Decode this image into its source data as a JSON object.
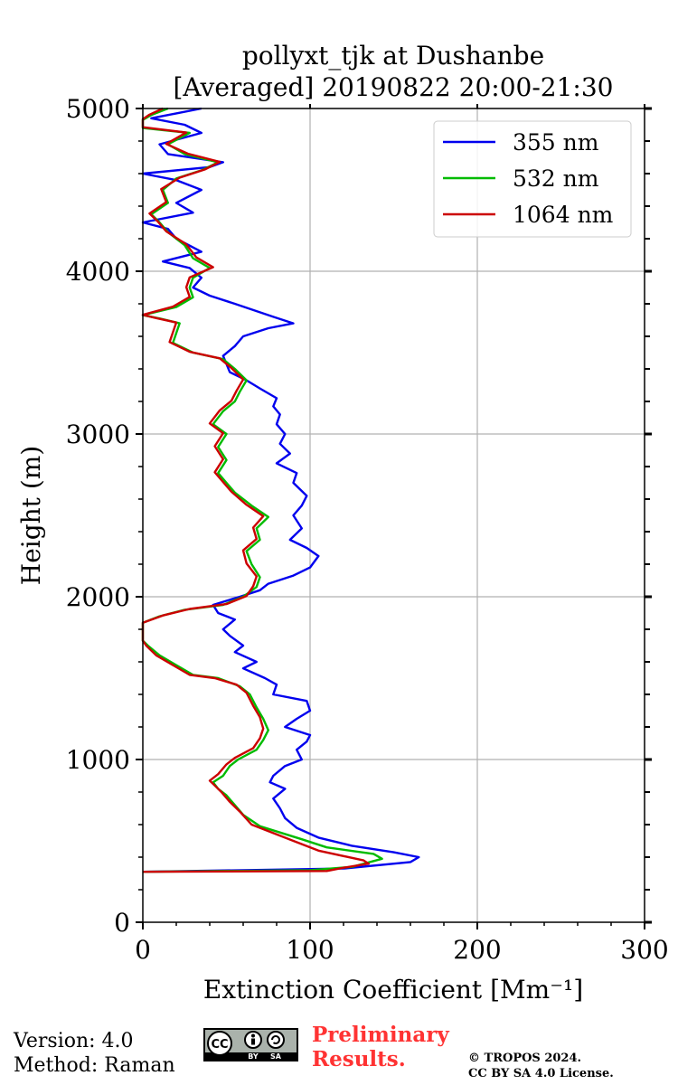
{
  "chart_data": {
    "type": "line",
    "title": "pollyxt_tjk at Dushanbe",
    "subtitle": "[Averaged] 20190822 20:00-21:30",
    "xlabel": "Extinction Coefficient [Mm⁻¹]",
    "ylabel": "Height (m)",
    "xlim": [
      0,
      300
    ],
    "ylim": [
      0,
      5000
    ],
    "xticks": [
      0,
      100,
      200,
      300
    ],
    "yticks": [
      0,
      1000,
      2000,
      3000,
      4000,
      5000
    ],
    "grid": true,
    "legend_position": "top-right",
    "series": [
      {
        "name": "355 nm",
        "color": "#0000ee",
        "points": [
          [
            0,
            310
          ],
          [
            120,
            330
          ],
          [
            160,
            370
          ],
          [
            165,
            400
          ],
          [
            150,
            430
          ],
          [
            125,
            470
          ],
          [
            105,
            520
          ],
          [
            92,
            580
          ],
          [
            85,
            640
          ],
          [
            82,
            700
          ],
          [
            78,
            760
          ],
          [
            85,
            820
          ],
          [
            76,
            860
          ],
          [
            78,
            900
          ],
          [
            85,
            960
          ],
          [
            95,
            1000
          ],
          [
            92,
            1060
          ],
          [
            98,
            1110
          ],
          [
            100,
            1150
          ],
          [
            85,
            1200
          ],
          [
            92,
            1250
          ],
          [
            100,
            1300
          ],
          [
            98,
            1360
          ],
          [
            78,
            1400
          ],
          [
            80,
            1460
          ],
          [
            73,
            1500
          ],
          [
            60,
            1560
          ],
          [
            68,
            1600
          ],
          [
            55,
            1660
          ],
          [
            60,
            1700
          ],
          [
            52,
            1760
          ],
          [
            48,
            1800
          ],
          [
            55,
            1860
          ],
          [
            45,
            1900
          ],
          [
            42,
            1950
          ],
          [
            58,
            2000
          ],
          [
            70,
            2040
          ],
          [
            75,
            2080
          ],
          [
            90,
            2130
          ],
          [
            100,
            2180
          ],
          [
            105,
            2250
          ],
          [
            98,
            2300
          ],
          [
            88,
            2350
          ],
          [
            95,
            2420
          ],
          [
            90,
            2500
          ],
          [
            95,
            2560
          ],
          [
            98,
            2620
          ],
          [
            90,
            2700
          ],
          [
            92,
            2760
          ],
          [
            80,
            2820
          ],
          [
            88,
            2880
          ],
          [
            82,
            2940
          ],
          [
            85,
            3000
          ],
          [
            80,
            3060
          ],
          [
            82,
            3120
          ],
          [
            78,
            3170
          ],
          [
            80,
            3220
          ],
          [
            70,
            3280
          ],
          [
            62,
            3330
          ],
          [
            52,
            3380
          ],
          [
            50,
            3430
          ],
          [
            48,
            3480
          ],
          [
            55,
            3540
          ],
          [
            60,
            3600
          ],
          [
            75,
            3650
          ],
          [
            90,
            3680
          ],
          [
            78,
            3720
          ],
          [
            55,
            3800
          ],
          [
            40,
            3850
          ],
          [
            30,
            3900
          ],
          [
            35,
            3960
          ],
          [
            28,
            4020
          ],
          [
            12,
            4060
          ],
          [
            35,
            4120
          ],
          [
            20,
            4200
          ],
          [
            15,
            4260
          ],
          [
            0,
            4300
          ],
          [
            30,
            4360
          ],
          [
            20,
            4420
          ],
          [
            35,
            4500
          ],
          [
            20,
            4560
          ],
          [
            0,
            4600
          ],
          [
            40,
            4640
          ],
          [
            48,
            4670
          ],
          [
            15,
            4720
          ],
          [
            10,
            4780
          ],
          [
            35,
            4850
          ],
          [
            25,
            4900
          ],
          [
            5,
            4940
          ],
          [
            20,
            4970
          ],
          [
            35,
            5000
          ]
        ]
      },
      {
        "name": "532 nm",
        "color": "#00bb00",
        "points": [
          [
            0,
            310
          ],
          [
            100,
            320
          ],
          [
            125,
            340
          ],
          [
            143,
            390
          ],
          [
            138,
            420
          ],
          [
            110,
            460
          ],
          [
            95,
            510
          ],
          [
            70,
            590
          ],
          [
            60,
            660
          ],
          [
            55,
            720
          ],
          [
            50,
            780
          ],
          [
            45,
            820
          ],
          [
            42,
            860
          ],
          [
            48,
            900
          ],
          [
            52,
            960
          ],
          [
            57,
            1000
          ],
          [
            68,
            1060
          ],
          [
            72,
            1120
          ],
          [
            75,
            1180
          ],
          [
            72,
            1250
          ],
          [
            68,
            1320
          ],
          [
            64,
            1400
          ],
          [
            58,
            1450
          ],
          [
            45,
            1500
          ],
          [
            30,
            1520
          ],
          [
            20,
            1580
          ],
          [
            10,
            1640
          ],
          [
            3,
            1700
          ],
          [
            0,
            1730
          ],
          [
            0,
            1840
          ],
          [
            10,
            1880
          ],
          [
            25,
            1920
          ],
          [
            48,
            1950
          ],
          [
            60,
            2000
          ],
          [
            68,
            2060
          ],
          [
            70,
            2120
          ],
          [
            65,
            2200
          ],
          [
            62,
            2280
          ],
          [
            70,
            2350
          ],
          [
            68,
            2420
          ],
          [
            75,
            2490
          ],
          [
            65,
            2560
          ],
          [
            55,
            2640
          ],
          [
            50,
            2700
          ],
          [
            45,
            2760
          ],
          [
            50,
            2840
          ],
          [
            45,
            2920
          ],
          [
            50,
            3000
          ],
          [
            42,
            3060
          ],
          [
            48,
            3140
          ],
          [
            55,
            3200
          ],
          [
            58,
            3260
          ],
          [
            62,
            3330
          ],
          [
            55,
            3400
          ],
          [
            48,
            3460
          ],
          [
            30,
            3500
          ],
          [
            18,
            3560
          ],
          [
            20,
            3620
          ],
          [
            22,
            3680
          ],
          [
            10,
            3710
          ],
          [
            0,
            3730
          ],
          [
            20,
            3780
          ],
          [
            30,
            3840
          ],
          [
            28,
            3900
          ],
          [
            30,
            3960
          ],
          [
            40,
            4020
          ],
          [
            30,
            4080
          ],
          [
            25,
            4160
          ],
          [
            15,
            4240
          ],
          [
            10,
            4300
          ],
          [
            5,
            4350
          ],
          [
            15,
            4420
          ],
          [
            12,
            4500
          ],
          [
            20,
            4570
          ],
          [
            35,
            4620
          ],
          [
            45,
            4670
          ],
          [
            25,
            4720
          ],
          [
            15,
            4780
          ],
          [
            28,
            4850
          ],
          [
            0,
            4880
          ],
          [
            0,
            4930
          ],
          [
            5,
            4960
          ],
          [
            15,
            5000
          ]
        ]
      },
      {
        "name": "1064 nm",
        "color": "#cc0000",
        "points": [
          [
            0,
            310
          ],
          [
            110,
            315
          ],
          [
            120,
            335
          ],
          [
            135,
            360
          ],
          [
            132,
            380
          ],
          [
            105,
            440
          ],
          [
            90,
            500
          ],
          [
            65,
            600
          ],
          [
            58,
            680
          ],
          [
            52,
            740
          ],
          [
            47,
            800
          ],
          [
            43,
            840
          ],
          [
            40,
            870
          ],
          [
            45,
            910
          ],
          [
            50,
            970
          ],
          [
            55,
            1010
          ],
          [
            66,
            1070
          ],
          [
            70,
            1130
          ],
          [
            72,
            1190
          ],
          [
            70,
            1260
          ],
          [
            66,
            1330
          ],
          [
            62,
            1410
          ],
          [
            56,
            1460
          ],
          [
            43,
            1500
          ],
          [
            28,
            1520
          ],
          [
            18,
            1580
          ],
          [
            8,
            1640
          ],
          [
            2,
            1700
          ],
          [
            0,
            1730
          ],
          [
            0,
            1840
          ],
          [
            12,
            1885
          ],
          [
            28,
            1925
          ],
          [
            50,
            1955
          ],
          [
            62,
            2005
          ],
          [
            66,
            2065
          ],
          [
            68,
            2125
          ],
          [
            62,
            2205
          ],
          [
            60,
            2285
          ],
          [
            68,
            2355
          ],
          [
            66,
            2425
          ],
          [
            72,
            2495
          ],
          [
            62,
            2565
          ],
          [
            53,
            2645
          ],
          [
            48,
            2705
          ],
          [
            43,
            2765
          ],
          [
            48,
            2845
          ],
          [
            43,
            2925
          ],
          [
            48,
            3005
          ],
          [
            40,
            3065
          ],
          [
            46,
            3145
          ],
          [
            53,
            3205
          ],
          [
            56,
            3265
          ],
          [
            60,
            3335
          ],
          [
            53,
            3405
          ],
          [
            46,
            3465
          ],
          [
            28,
            3505
          ],
          [
            16,
            3565
          ],
          [
            18,
            3625
          ],
          [
            20,
            3685
          ],
          [
            8,
            3712
          ],
          [
            0,
            3732
          ],
          [
            18,
            3782
          ],
          [
            28,
            3842
          ],
          [
            26,
            3902
          ],
          [
            28,
            3962
          ],
          [
            42,
            4025
          ],
          [
            32,
            4085
          ],
          [
            26,
            4165
          ],
          [
            14,
            4245
          ],
          [
            9,
            4305
          ],
          [
            4,
            4355
          ],
          [
            14,
            4425
          ],
          [
            11,
            4505
          ],
          [
            22,
            4575
          ],
          [
            37,
            4625
          ],
          [
            46,
            4672
          ],
          [
            27,
            4722
          ],
          [
            14,
            4782
          ],
          [
            26,
            4852
          ],
          [
            0,
            4885
          ],
          [
            0,
            4935
          ],
          [
            4,
            4962
          ],
          [
            12,
            5000
          ]
        ]
      }
    ]
  },
  "footer": {
    "version": "Version: 4.0",
    "method": "Method: Raman",
    "preliminary_line1": "Preliminary",
    "preliminary_line2": "Results.",
    "preliminary_color": "#ff3333",
    "copyright_line1": "© TROPOS 2024.",
    "copyright_line2": "CC BY SA 4.0 License.",
    "cc_logo": "CC",
    "cc_by": "BY",
    "cc_sa": "SA"
  }
}
